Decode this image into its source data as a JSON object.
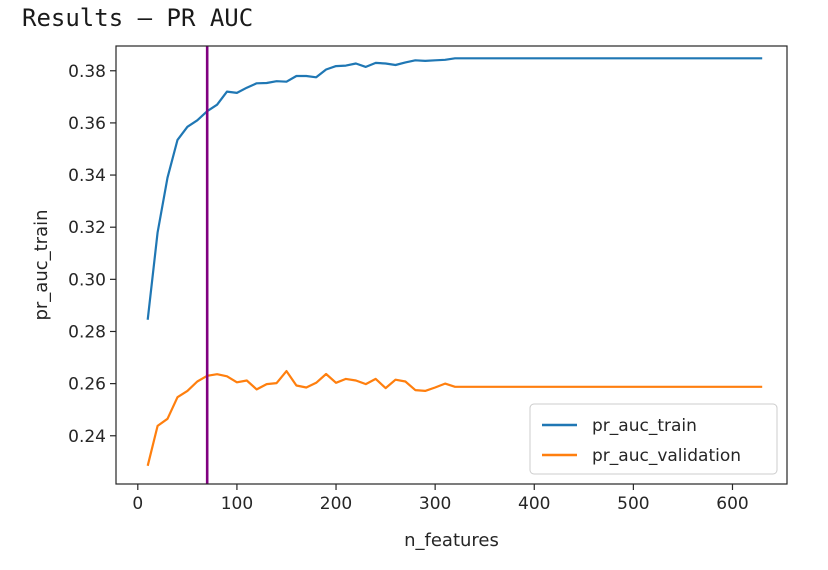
{
  "header": {
    "title": "Results – PR AUC"
  },
  "chart_data": {
    "type": "line",
    "title": "",
    "xlabel": "n_features",
    "ylabel": "pr_auc_train",
    "xlim": [
      -22,
      655
    ],
    "ylim": [
      0.2215,
      0.3895
    ],
    "xticks": [
      0,
      100,
      200,
      300,
      400,
      500,
      600
    ],
    "yticks": [
      0.24,
      0.26,
      0.28,
      0.3,
      0.32,
      0.34,
      0.36,
      0.38
    ],
    "ytick_labels": [
      "0.24",
      "0.26",
      "0.28",
      "0.30",
      "0.32",
      "0.34",
      "0.36",
      "0.38"
    ],
    "legend_position": "lower-right",
    "grid": false,
    "vline": {
      "x": 70,
      "color": "#800080"
    },
    "x": [
      10,
      20,
      30,
      40,
      50,
      60,
      70,
      80,
      90,
      100,
      110,
      120,
      130,
      140,
      150,
      160,
      170,
      180,
      190,
      200,
      210,
      220,
      230,
      240,
      250,
      260,
      270,
      280,
      290,
      300,
      310,
      320,
      330,
      340,
      350,
      360,
      370,
      380,
      390,
      400,
      410,
      420,
      430,
      440,
      450,
      460,
      470,
      480,
      490,
      500,
      510,
      520,
      530,
      540,
      550,
      560,
      570,
      580,
      590,
      600,
      610,
      620,
      630
    ],
    "series": [
      {
        "name": "pr_auc_train",
        "color": "#1f77b4",
        "values": [
          0.2845,
          0.318,
          0.339,
          0.3535,
          0.3585,
          0.361,
          0.3645,
          0.367,
          0.372,
          0.3715,
          0.3735,
          0.3752,
          0.3753,
          0.376,
          0.3758,
          0.378,
          0.378,
          0.3775,
          0.3805,
          0.3818,
          0.382,
          0.3828,
          0.3815,
          0.383,
          0.3828,
          0.3822,
          0.3832,
          0.384,
          0.3838,
          0.384,
          0.3842,
          0.3848,
          0.3848,
          0.3848,
          0.3848,
          0.3848,
          0.3848,
          0.3848,
          0.3848,
          0.3848,
          0.3848,
          0.3848,
          0.3848,
          0.3848,
          0.3848,
          0.3848,
          0.3848,
          0.3848,
          0.3848,
          0.3848,
          0.3848,
          0.3848,
          0.3848,
          0.3848,
          0.3848,
          0.3848,
          0.3848,
          0.3848,
          0.3848,
          0.3848,
          0.3848,
          0.3848,
          0.3848
        ]
      },
      {
        "name": "pr_auc_validation",
        "color": "#ff7f0e",
        "values": [
          0.2285,
          0.2438,
          0.2465,
          0.2548,
          0.2572,
          0.2608,
          0.263,
          0.2636,
          0.2628,
          0.2605,
          0.2612,
          0.2578,
          0.2598,
          0.2602,
          0.2648,
          0.2593,
          0.2585,
          0.2603,
          0.2637,
          0.2603,
          0.2618,
          0.2612,
          0.2598,
          0.2618,
          0.2583,
          0.2615,
          0.2608,
          0.2575,
          0.2572,
          0.2585,
          0.26,
          0.2588,
          0.2588,
          0.2588,
          0.2588,
          0.2588,
          0.2588,
          0.2588,
          0.2588,
          0.2588,
          0.2588,
          0.2588,
          0.2588,
          0.2588,
          0.2588,
          0.2588,
          0.2588,
          0.2588,
          0.2588,
          0.2588,
          0.2588,
          0.2588,
          0.2588,
          0.2588,
          0.2588,
          0.2588,
          0.2588,
          0.2588,
          0.2588,
          0.2588,
          0.2588,
          0.2588,
          0.2588
        ]
      }
    ]
  }
}
